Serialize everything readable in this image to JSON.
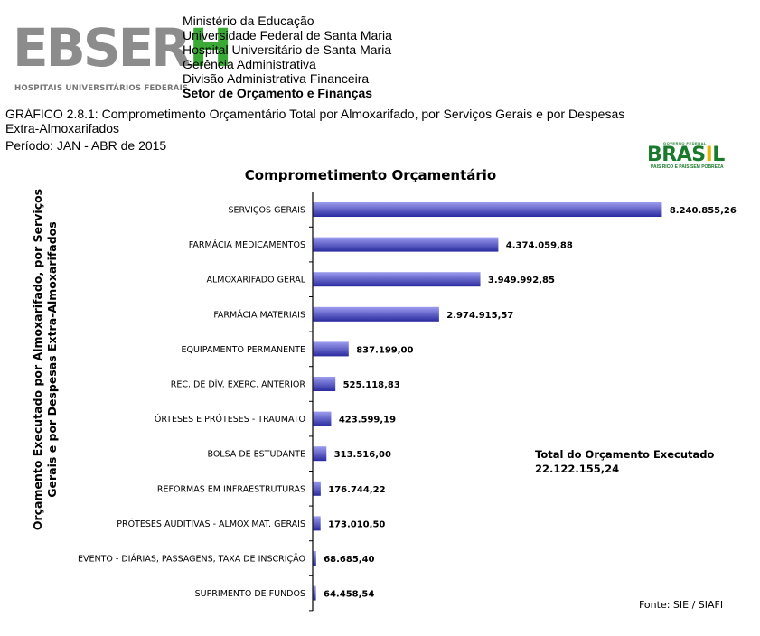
{
  "header": {
    "logo": {
      "text_main": "EBSER",
      "text_accent": "H",
      "subtitle": "HOSPITAIS UNIVERSITÁRIOS FEDERAIS"
    },
    "institution_lines": [
      "Ministério da Educação",
      "Universidade Federal de Santa Maria",
      "Hospital Universitário de Santa Maria",
      "Gerência Administrativa",
      "Divisão Administrativa Financeira"
    ],
    "institution_bold": "Setor de Orçamento e Finanças",
    "caption": "GRÁFICO 2.8.1: Comprometimento Orçamentário Total por Almoxarifado, por Serviços Gerais e por Despesas Extra-Almoxarifados",
    "period": "Período: JAN - ABR de 2015",
    "brasil_logo": {
      "top": "GOVERNO FEDERAL",
      "word_left": "BRAS",
      "word_accent": "I",
      "word_right": "L",
      "slogan": "PAÍS RICO É PAÍS SEM POBREZA"
    }
  },
  "chart_data": {
    "type": "bar",
    "orientation": "horizontal",
    "title": "Comprometimento Orçamentário",
    "ylabel": "Orçamento Executado por Almoxarifado, por Serviços Gerais e por Despesas Extra-Almoxarifados",
    "xlabel": "",
    "categories": [
      "SERVIÇOS GERAIS",
      "FARMÁCIA MEDICAMENTOS",
      "ALMOXARIFADO GERAL",
      "FARMÁCIA MATERIAIS",
      "EQUIPAMENTO PERMANENTE",
      "REC. DE DÍV. EXERC. ANTERIOR",
      "ÓRTESES E PRÓTESES - TRAUMATO",
      "BOLSA DE ESTUDANTE",
      "REFORMAS EM INFRAESTRUTURAS",
      "PRÓTESES AUDITIVAS - ALMOX MAT. GERAIS",
      "EVENTO - DIÁRIAS, PASSAGENS, TAXA DE INSCRIÇÃO",
      "SUPRIMENTO DE FUNDOS"
    ],
    "values": [
      8240855.26,
      4374059.88,
      3949992.85,
      2974915.57,
      837199.0,
      525118.83,
      423599.19,
      313516.0,
      176744.22,
      173010.5,
      68685.4,
      64458.54
    ],
    "value_labels": [
      "8.240.855,26",
      "4.374.059,88",
      "3.949.992,85",
      "2.974.915,57",
      "837.199,00",
      "525.118,83",
      "423.599,19",
      "313.516,00",
      "176.744,22",
      "173.010,50",
      "68.685,40",
      "64.458,54"
    ],
    "xlim": [
      0,
      8800000
    ],
    "grid": false,
    "legend": "none",
    "bar_color_light": "#9c9cf0",
    "bar_color_dark": "#2a2aa0",
    "annotation": {
      "label": "Total  do Orçamento Executado",
      "value": "22.122.155,24"
    },
    "source": "Fonte: SIE / SIAFI"
  }
}
